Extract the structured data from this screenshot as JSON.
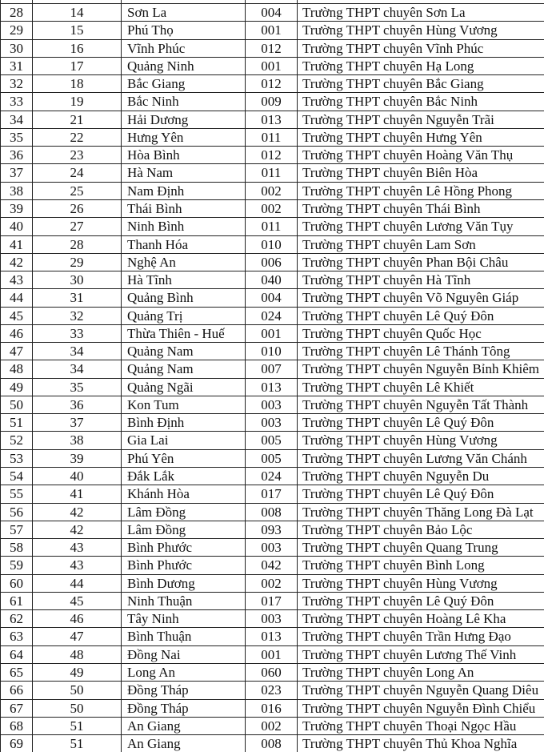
{
  "table": {
    "rows": [
      [
        "28",
        "14",
        "Sơn La",
        "004",
        "Trường THPT chuyên Sơn La"
      ],
      [
        "29",
        "15",
        "Phú Thọ",
        "001",
        "Trường THPT chuyên Hùng Vương"
      ],
      [
        "30",
        "16",
        "Vĩnh Phúc",
        "012",
        "Trường THPT chuyên Vĩnh Phúc"
      ],
      [
        "31",
        "17",
        "Quảng Ninh",
        "001",
        "Trường THPT chuyên Hạ Long"
      ],
      [
        "32",
        "18",
        "Bắc Giang",
        "012",
        "Trường THPT chuyên Bắc Giang"
      ],
      [
        "33",
        "19",
        "Bắc Ninh",
        "009",
        "Trường THPT chuyên Bắc Ninh"
      ],
      [
        "34",
        "21",
        "Hải Dương",
        "013",
        "Trường THPT chuyên Nguyễn Trãi"
      ],
      [
        "35",
        "22",
        "Hưng Yên",
        "011",
        "Trường THPT chuyên Hưng Yên"
      ],
      [
        "36",
        "23",
        "Hòa Bình",
        "012",
        "Trường THPT chuyên Hoàng Văn Thụ"
      ],
      [
        "37",
        "24",
        "Hà Nam",
        "011",
        "Trường THPT chuyên Biên Hòa"
      ],
      [
        "38",
        "25",
        "Nam Định",
        "002",
        "Trường THPT chuyên Lê Hồng Phong"
      ],
      [
        "39",
        "26",
        "Thái Bình",
        "002",
        "Trường THPT chuyên Thái Bình"
      ],
      [
        "40",
        "27",
        "Ninh Bình",
        "011",
        "Trường THPT chuyên Lương Văn Tụy"
      ],
      [
        "41",
        "28",
        "Thanh Hóa",
        "010",
        "Trường THPT chuyên Lam Sơn"
      ],
      [
        "42",
        "29",
        "Nghệ An",
        "006",
        "Trường THPT chuyên Phan Bội Châu"
      ],
      [
        "43",
        "30",
        "Hà Tĩnh",
        "040",
        "Trường THPT chuyên Hà Tĩnh"
      ],
      [
        "44",
        "31",
        "Quảng Bình",
        "004",
        "Trường THPT chuyên Võ Nguyên Giáp"
      ],
      [
        "45",
        "32",
        "Quảng Trị",
        "024",
        "Trường THPT chuyên Lê Quý Đôn"
      ],
      [
        "46",
        "33",
        "Thừa Thiên - Huế",
        "001",
        "Trường THPT chuyên Quốc Học"
      ],
      [
        "47",
        "34",
        "Quảng Nam",
        "010",
        "Trường THPT chuyên Lê Thánh Tông"
      ],
      [
        "48",
        "34",
        "Quảng Nam",
        "007",
        "Trường THPT chuyên Nguyễn Bỉnh Khiêm"
      ],
      [
        "49",
        "35",
        "Quảng Ngãi",
        "013",
        "Trường THPT chuyên Lê Khiết"
      ],
      [
        "50",
        "36",
        "Kon Tum",
        "003",
        "Trường THPT chuyên Nguyễn Tất Thành"
      ],
      [
        "51",
        "37",
        "Bình Định",
        "003",
        "Trường THPT chuyên Lê Quý Đôn"
      ],
      [
        "52",
        "38",
        "Gia Lai",
        "005",
        "Trường THPT chuyên Hùng Vương"
      ],
      [
        "53",
        "39",
        "Phú Yên",
        "005",
        "Trường THPT chuyên Lương Văn Chánh"
      ],
      [
        "54",
        "40",
        "Đắk Lắk",
        "024",
        "Trường THPT chuyên Nguyễn Du"
      ],
      [
        "55",
        "41",
        "Khánh Hòa",
        "017",
        "Trường THPT chuyên Lê Quý Đôn"
      ],
      [
        "56",
        "42",
        "Lâm Đồng",
        "008",
        "Trường THPT chuyên Thăng Long Đà Lạt"
      ],
      [
        "57",
        "42",
        "Lâm Đồng",
        "093",
        "Trường THPT chuyên Bảo Lộc"
      ],
      [
        "58",
        "43",
        "Bình Phước",
        "003",
        "Trường THPT chuyên Quang Trung"
      ],
      [
        "59",
        "43",
        "Bình Phước",
        "042",
        "Trường THPT chuyên Bình Long"
      ],
      [
        "60",
        "44",
        "Bình Dương",
        "002",
        "Trường THPT chuyên Hùng Vương"
      ],
      [
        "61",
        "45",
        "Ninh Thuận",
        "017",
        "Trường THPT chuyên Lê Quý Đôn"
      ],
      [
        "62",
        "46",
        "Tây Ninh",
        "003",
        "Trường THPT chuyên Hoàng Lê Kha"
      ],
      [
        "63",
        "47",
        "Bình Thuận",
        "013",
        "Trường THPT chuyên Trần Hưng Đạo"
      ],
      [
        "64",
        "48",
        "Đồng Nai",
        "001",
        "Trường THPT chuyên Lương Thế Vinh"
      ],
      [
        "65",
        "49",
        "Long An",
        "060",
        "Trường THPT chuyên Long An"
      ],
      [
        "66",
        "50",
        "Đồng Tháp",
        "023",
        "Trường THPT chuyên Nguyễn Quang Diêu"
      ],
      [
        "67",
        "50",
        "Đồng Tháp",
        "016",
        "Trường THPT chuyên Nguyễn Đình Chiểu"
      ],
      [
        "68",
        "51",
        "An Giang",
        "002",
        "Trường THPT chuyên Thoại Ngọc Hầu"
      ],
      [
        "69",
        "51",
        "An Giang",
        "008",
        "Trường THPT chuyên Thủ Khoa Nghĩa"
      ]
    ]
  }
}
